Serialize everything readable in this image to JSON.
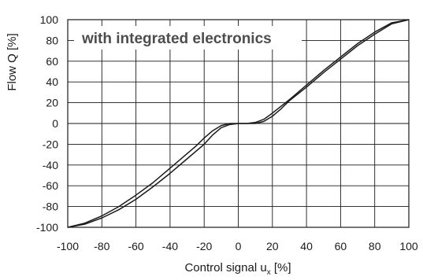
{
  "chart_data": {
    "type": "line",
    "title": "",
    "annotation": "with integrated electronics",
    "xlabel": {
      "main": "Control signal u",
      "subscript": "x",
      "suffix": " [%]"
    },
    "ylabel": "Flow  Q [%]",
    "xlim": [
      -100,
      100
    ],
    "ylim": [
      -100,
      100
    ],
    "xticks": [
      "-100",
      "-80",
      "-60",
      "-40",
      "-20",
      "0",
      "20",
      "40",
      "60",
      "80",
      "100"
    ],
    "yticks": [
      "100",
      "80",
      "60",
      "40",
      "20",
      "0",
      "-20",
      "-40",
      "-60",
      "-80",
      "-100"
    ],
    "grid": true,
    "legend": "none",
    "colors": {
      "curve": "#1a1a1a",
      "grid": "#1a1a1a",
      "annotation": "#4d4d4d"
    },
    "series": [
      {
        "x": [
          -100,
          -90,
          -80,
          -70,
          -60,
          -50,
          -40,
          -30,
          -25,
          -20,
          -15,
          -10,
          -5,
          0,
          5,
          10,
          15,
          20,
          30,
          40,
          50,
          60,
          70,
          80,
          90,
          100
        ],
        "y": [
          -100,
          -96,
          -89,
          -80,
          -69,
          -57,
          -43,
          -29,
          -22,
          -14,
          -7,
          -2,
          0,
          0,
          0,
          1,
          4,
          10,
          23,
          37,
          51,
          64,
          77,
          88,
          97,
          100
        ]
      },
      {
        "x": [
          -100,
          -90,
          -80,
          -70,
          -60,
          -50,
          -40,
          -30,
          -20,
          -15,
          -10,
          -5,
          0,
          5,
          10,
          15,
          20,
          25,
          30,
          40,
          50,
          60,
          70,
          80,
          90,
          100
        ],
        "y": [
          -100,
          -97,
          -91,
          -83,
          -73,
          -61,
          -48,
          -34,
          -20,
          -11,
          -4,
          -1,
          0,
          0,
          0,
          2,
          7,
          14,
          22,
          35,
          49,
          62,
          75,
          86,
          96,
          100
        ]
      }
    ]
  }
}
